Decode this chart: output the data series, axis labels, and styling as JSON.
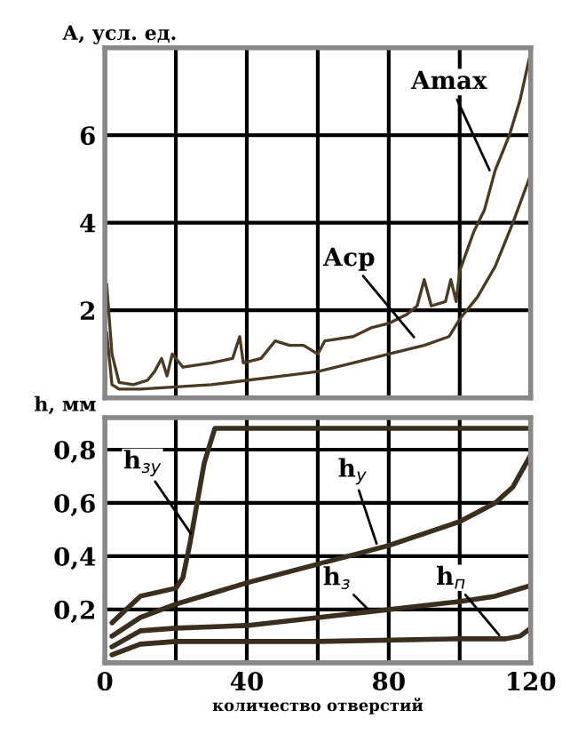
{
  "chart_data": [
    {
      "type": "line",
      "ylabel": "А, усл. ед.",
      "xlim": [
        0,
        120
      ],
      "ylim": [
        0,
        8
      ],
      "xticks": [
        0,
        20,
        40,
        60,
        80,
        100,
        120
      ],
      "yticks": [
        2,
        4,
        6
      ],
      "tick_labels": "y",
      "grid": true,
      "legend": false,
      "marker": "none",
      "line_style": "solid",
      "series": [
        {
          "color": "#4b3a22",
          "x": [
            0.5,
            2,
            4,
            8,
            12,
            14,
            16,
            17.5,
            19,
            22,
            30,
            36,
            38,
            39,
            44,
            48,
            52,
            56,
            60,
            62,
            70,
            75,
            80,
            85,
            88,
            90,
            92,
            96,
            97.5,
            99,
            100,
            104,
            107,
            110,
            114,
            117,
            120
          ],
          "values": [
            2.6,
            1.0,
            0.35,
            0.3,
            0.4,
            0.6,
            0.9,
            0.5,
            1.0,
            0.7,
            0.8,
            0.9,
            1.4,
            0.8,
            0.9,
            1.3,
            1.2,
            1.2,
            1.0,
            1.3,
            1.4,
            1.6,
            1.7,
            1.9,
            2.1,
            2.7,
            2.1,
            2.2,
            2.7,
            2.2,
            2.9,
            3.8,
            4.3,
            5.2,
            6.0,
            6.8,
            7.9
          ]
        },
        {
          "color": "#4b3a22",
          "x": [
            0.5,
            2,
            4,
            10,
            20,
            30,
            40,
            50,
            60,
            70,
            80,
            90,
            97,
            100,
            105,
            110,
            115,
            120
          ],
          "values": [
            1.5,
            0.3,
            0.2,
            0.2,
            0.25,
            0.3,
            0.4,
            0.5,
            0.6,
            0.8,
            1.0,
            1.2,
            1.4,
            1.8,
            2.3,
            3.0,
            4.0,
            5.1
          ]
        }
      ],
      "annotations": [
        {
          "text": "Amax",
          "x": 109,
          "y": 5.1
        },
        {
          "text": "Аср",
          "x": 88,
          "y": 1.3
        }
      ]
    },
    {
      "type": "line",
      "ylabel": "h, мм",
      "xlabel": "количество отверстий",
      "xlim": [
        0,
        120
      ],
      "ylim": [
        0,
        0.92
      ],
      "xticks": [
        0,
        {
          "value": 20,
          "label": null
        },
        40,
        {
          "value": 60,
          "label": null
        },
        80,
        {
          "value": 100,
          "label": null
        },
        120
      ],
      "yticks": [
        {
          "value": 0.2,
          "label": "0,2"
        },
        {
          "value": 0.4,
          "label": "0,4"
        },
        {
          "value": 0.6,
          "label": "0,6"
        },
        {
          "value": 0.8,
          "label": "0,8"
        }
      ],
      "grid": true,
      "legend": false,
      "marker": "none",
      "line_style": "solid",
      "series": [
        {
          "color": "#3a2e1e",
          "x": [
            2,
            10,
            20,
            22,
            24,
            26,
            28,
            31,
            32,
            120
          ],
          "values": [
            0.15,
            0.25,
            0.28,
            0.32,
            0.45,
            0.6,
            0.75,
            0.88,
            0.88,
            0.88
          ]
        },
        {
          "color": "#3a2e1e",
          "x": [
            2,
            10,
            20,
            40,
            60,
            80,
            100,
            110,
            115,
            120
          ],
          "values": [
            0.1,
            0.17,
            0.22,
            0.3,
            0.37,
            0.44,
            0.53,
            0.6,
            0.66,
            0.78
          ]
        },
        {
          "color": "#3a2e1e",
          "x": [
            2,
            10,
            20,
            40,
            60,
            80,
            100,
            110,
            120
          ],
          "values": [
            0.06,
            0.12,
            0.13,
            0.14,
            0.17,
            0.2,
            0.23,
            0.25,
            0.29
          ]
        },
        {
          "color": "#3a2e1e",
          "x": [
            2,
            10,
            20,
            60,
            100,
            113,
            117,
            120
          ],
          "values": [
            0.03,
            0.07,
            0.08,
            0.08,
            0.09,
            0.09,
            0.1,
            0.13
          ]
        }
      ],
      "annotations": [
        {
          "text": "h$_{зу}$",
          "x": 25,
          "y": 0.47
        },
        {
          "text": "h$_{у}$",
          "x": 77,
          "y": 0.43
        },
        {
          "text": "h$_{з}$",
          "x": 75,
          "y": 0.19
        },
        {
          "text": "h$_{п}$",
          "x": 112,
          "y": 0.09
        }
      ]
    }
  ]
}
